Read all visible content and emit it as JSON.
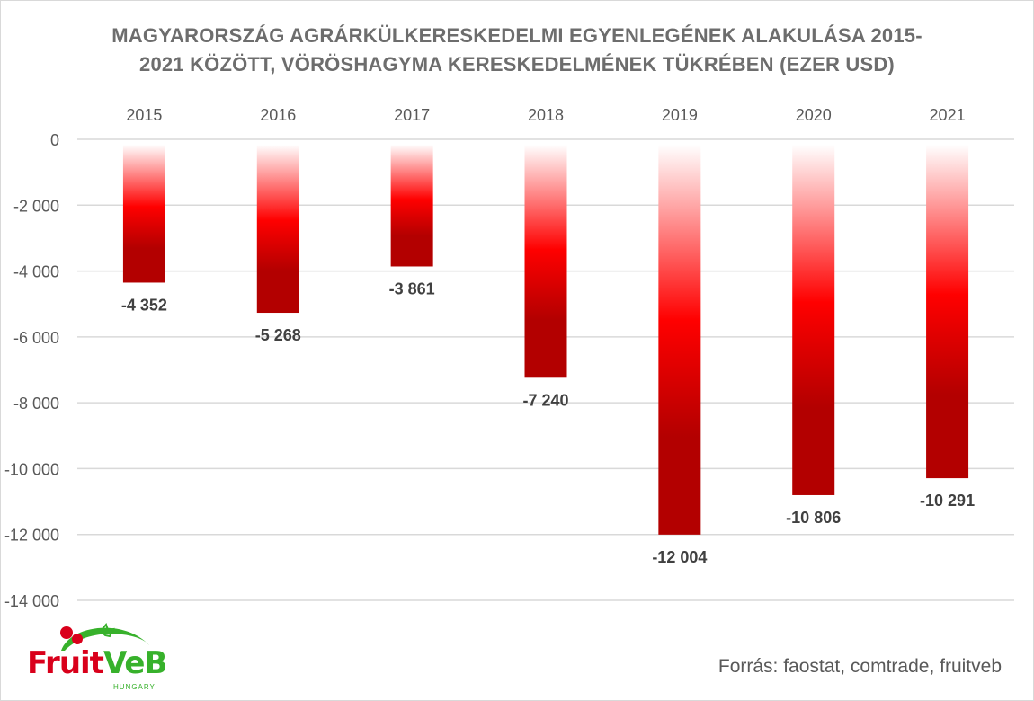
{
  "chart_data": {
    "type": "bar",
    "title_line1": "MAGYARORSZÁG AGRÁRKÜLKERESKEDELMI EGYENLEGÉNEK ALAKULÁSA 2015-",
    "title_line2": "2021 KÖZÖTT, VÖRÖSHAGYMA KERESKEDELMÉNEK TÜKRÉBEN (EZER USD)",
    "categories": [
      "2015",
      "2016",
      "2017",
      "2018",
      "2019",
      "2020",
      "2021"
    ],
    "values": [
      -4352,
      -5268,
      -3861,
      -7240,
      -12004,
      -10806,
      -10291
    ],
    "value_labels": [
      "-4 352",
      "-5 268",
      "-3 861",
      "-7 240",
      "-12 004",
      "-10 806",
      "-10 291"
    ],
    "ylim": [
      -14000,
      0
    ],
    "y_ticks": [
      0,
      -2000,
      -4000,
      -6000,
      -8000,
      -10000,
      -12000,
      -14000
    ],
    "y_tick_labels": [
      "0",
      "-2 000",
      "-4 000",
      "-6 000",
      "-8 000",
      "-10 000",
      "-12 000",
      "-14 000"
    ],
    "category_axis_position": "top",
    "grid": true,
    "legend": "none",
    "bar_color_top": "#ffffff",
    "bar_color_mid": "#ff0000",
    "bar_color_bottom": "#b30000"
  },
  "source_text": "Forrás: faostat, comtrade, fruitveb",
  "logo": {
    "text_fruit": "Fruit",
    "text_veb": "VeB",
    "subtitle": "HUNGARY"
  }
}
